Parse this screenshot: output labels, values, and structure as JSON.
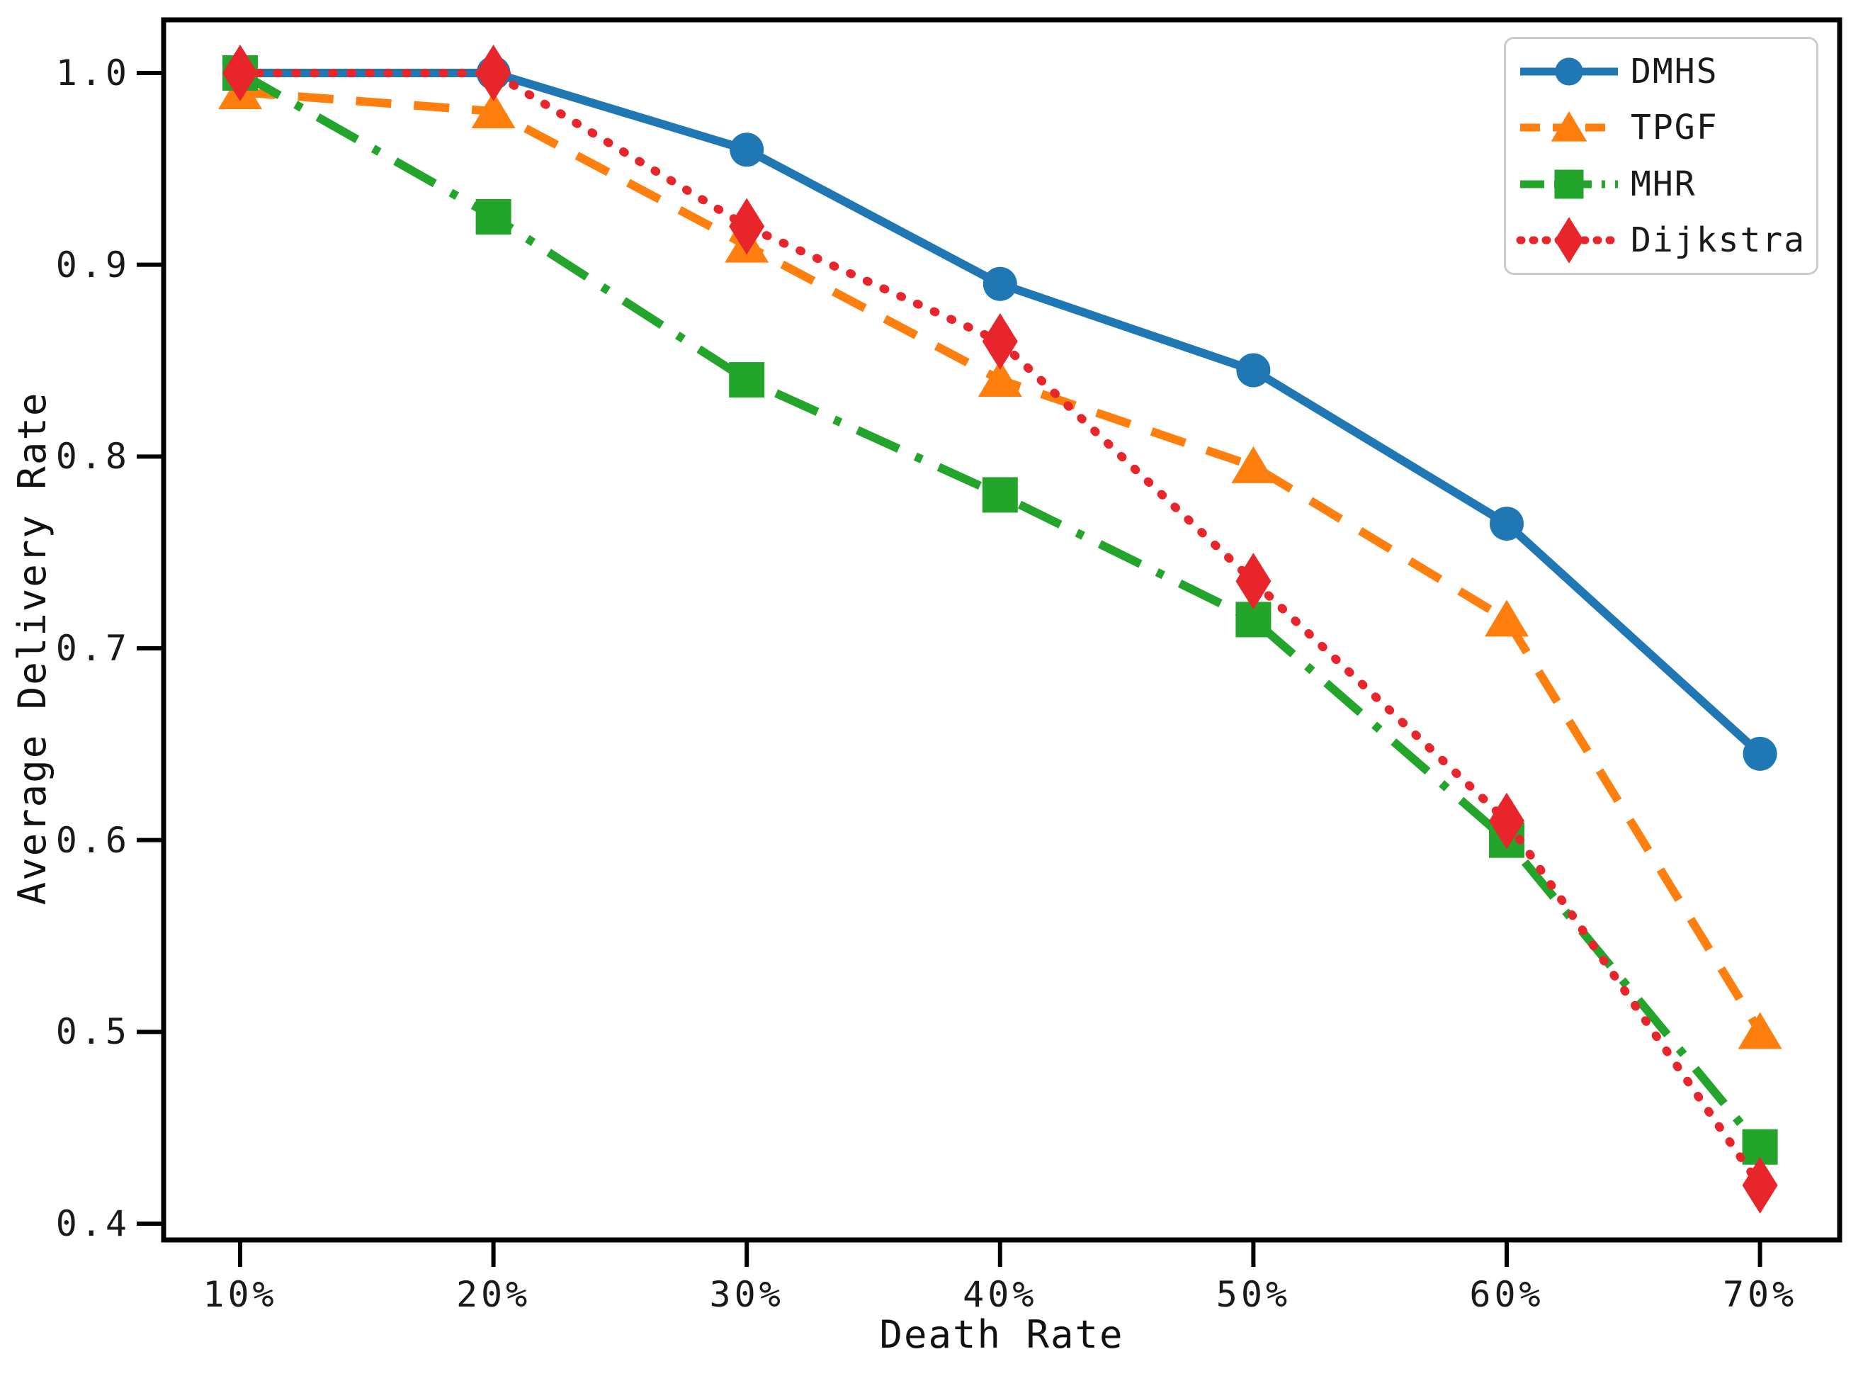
{
  "chart_data": {
    "type": "line",
    "title": "",
    "xlabel": "Death Rate",
    "ylabel": "Average Delivery Rate",
    "categories": [
      "10%",
      "20%",
      "30%",
      "40%",
      "50%",
      "60%",
      "70%"
    ],
    "y_tick_labels": [
      "1.0",
      "0.9",
      "0.8",
      "0.7",
      "0.6",
      "0.5",
      "0.4"
    ],
    "ylim": [
      0.4,
      1.0
    ],
    "grid": false,
    "legend_position": "upper-right",
    "axis_color": "#000000",
    "legend_border_color": "#cccccc",
    "series": [
      {
        "name": "DMHS",
        "color": "#1f77b4",
        "line_style": "solid",
        "marker": "circle",
        "values": [
          1.0,
          1.0,
          0.96,
          0.89,
          0.845,
          0.765,
          0.645
        ]
      },
      {
        "name": "TPGF",
        "color": "#ff7f0e",
        "line_style": "dashed",
        "marker": "triangle",
        "values": [
          0.99,
          0.98,
          0.91,
          0.84,
          0.795,
          0.715,
          0.5
        ]
      },
      {
        "name": "MHR",
        "color": "#23a52c",
        "line_style": "dashdot",
        "marker": "square",
        "values": [
          1.0,
          0.925,
          0.84,
          0.78,
          0.715,
          0.6,
          0.44
        ]
      },
      {
        "name": "Dijkstra",
        "color": "#e8252a",
        "line_style": "dotted",
        "marker": "diamond",
        "values": [
          1.0,
          1.0,
          0.92,
          0.86,
          0.735,
          0.61,
          0.42
        ]
      }
    ]
  }
}
